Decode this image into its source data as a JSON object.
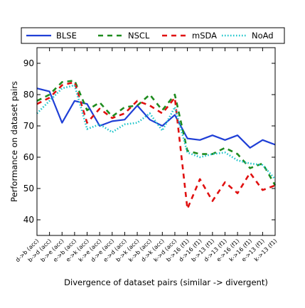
{
  "chart_data": {
    "type": "line",
    "xlabel": "Divergence of dataset pairs (similar -> divergent)",
    "ylabel": "Performance on dataset pairs",
    "ylim": [
      35,
      95
    ],
    "yticks": [
      40,
      50,
      60,
      70,
      80,
      90
    ],
    "legend_position": "top",
    "grid": false,
    "categories": [
      "d->b (acc)",
      "b->d (acc)",
      "b->e (acc)",
      "e->b (acc)",
      "e->k (acc)",
      "k->e (acc)",
      "d->e (acc)",
      "e->d (acc)",
      "b->k (acc)",
      "k->b (acc)",
      "d->k (acc)",
      "k->d (acc)",
      "b->16 (f1)",
      "d->16 (f1)",
      "b->13 (f1)",
      "d->13 (f1)",
      "e->16 (f1)",
      "k->16 (f1)",
      "e->13 (f1)",
      "k->13 (f1)"
    ],
    "series": [
      {
        "name": "BLSE",
        "color": "#1f3fd6",
        "style": "solid",
        "values": [
          82,
          81,
          71,
          78,
          77,
          70,
          71.5,
          72,
          76.5,
          72,
          70,
          73.5,
          66,
          65.5,
          67,
          65.5,
          67,
          63,
          65.5,
          64
        ]
      },
      {
        "name": "NSCL",
        "color": "#1e8b1e",
        "style": "dashed",
        "values": [
          78,
          80,
          84,
          84.5,
          75,
          77.5,
          73,
          76,
          76.5,
          80,
          75,
          80,
          62,
          61,
          61,
          63,
          61,
          56.5,
          58,
          51
        ]
      },
      {
        "name": "mSDA",
        "color": "#e01010",
        "style": "dashed",
        "values": [
          77,
          79,
          83,
          84,
          71,
          75.5,
          72.5,
          74,
          78,
          76.5,
          74,
          79,
          43.5,
          53,
          46,
          52,
          48.5,
          55,
          49.5,
          51
        ]
      },
      {
        "name": "NoAd",
        "color": "#19c3c9",
        "style": "dotted",
        "values": [
          74,
          78,
          82,
          83,
          69,
          70.5,
          68,
          70.5,
          71,
          74,
          68.5,
          76,
          61.5,
          60,
          61,
          61.5,
          59,
          58,
          57.5,
          53
        ]
      }
    ]
  }
}
